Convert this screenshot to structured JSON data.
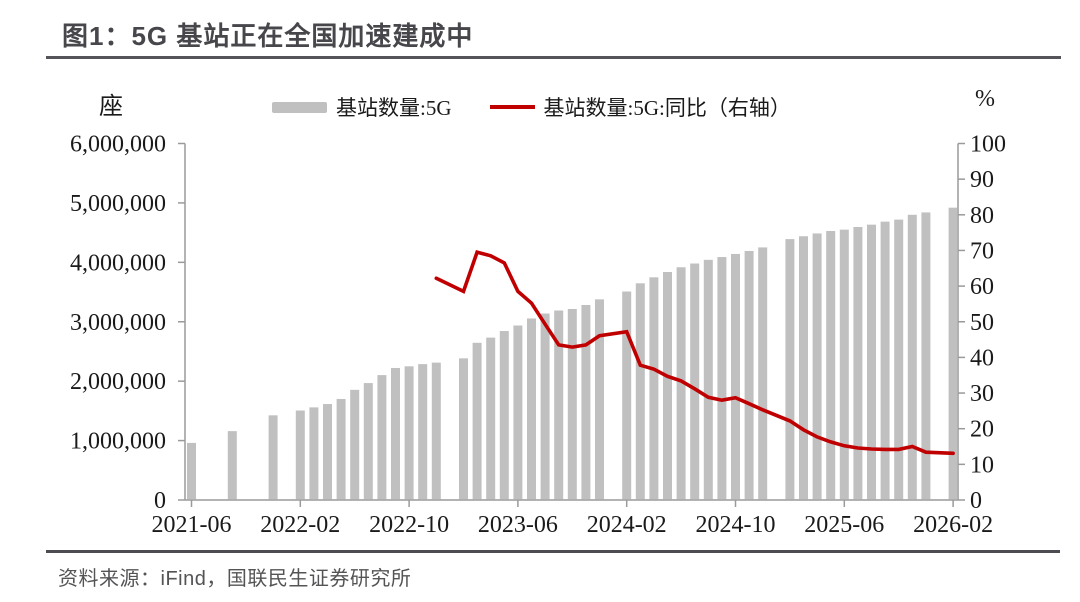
{
  "figure": {
    "title": "图1：5G 基站正在全国加速建成中",
    "source": "资料来源：iFind，国联民生证券研究所"
  },
  "chart_data": {
    "type": "combo-bar-line",
    "title": "图1：5G 基站正在全国加速建成中",
    "grid": "off",
    "legend_position": "top",
    "left_axis": {
      "unit": "座",
      "min": 0,
      "max": 6000000,
      "ticks": [
        {
          "value": 0,
          "label": "0"
        },
        {
          "value": 1000000,
          "label": "1,000,000"
        },
        {
          "value": 2000000,
          "label": "2,000,000"
        },
        {
          "value": 3000000,
          "label": "3,000,000"
        },
        {
          "value": 4000000,
          "label": "4,000,000"
        },
        {
          "value": 5000000,
          "label": "5,000,000"
        },
        {
          "value": 6000000,
          "label": "6,000,000"
        }
      ]
    },
    "right_axis": {
      "unit": "%",
      "min": 0,
      "max": 100,
      "ticks": [
        {
          "value": 0,
          "label": "0"
        },
        {
          "value": 10,
          "label": "10"
        },
        {
          "value": 20,
          "label": "20"
        },
        {
          "value": 30,
          "label": "30"
        },
        {
          "value": 40,
          "label": "40"
        },
        {
          "value": 50,
          "label": "50"
        },
        {
          "value": 60,
          "label": "60"
        },
        {
          "value": 70,
          "label": "70"
        },
        {
          "value": 80,
          "label": "80"
        },
        {
          "value": 90,
          "label": "90"
        },
        {
          "value": 100,
          "label": "100"
        }
      ]
    },
    "x_tick_labels": [
      "2021-06",
      "2022-02",
      "2022-10",
      "2023-06",
      "2024-02",
      "2024-10",
      "2025-06",
      "2026-02"
    ],
    "series": [
      {
        "name": "基站数量:5G",
        "type": "bar",
        "axis": "left",
        "color": "#c0c0c0",
        "points": [
          [
            "2021-06",
            961000
          ],
          [
            "2021-09",
            1159000
          ],
          [
            "2021-12",
            1425000
          ],
          [
            "2022-02",
            1506000
          ],
          [
            "2022-03",
            1559000
          ],
          [
            "2022-04",
            1615000
          ],
          [
            "2022-05",
            1700000
          ],
          [
            "2022-06",
            1854000
          ],
          [
            "2022-07",
            1968000
          ],
          [
            "2022-08",
            2102000
          ],
          [
            "2022-09",
            2222000
          ],
          [
            "2022-10",
            2250000
          ],
          [
            "2022-11",
            2287000
          ],
          [
            "2022-12",
            2312000
          ],
          [
            "2023-02",
            2384000
          ],
          [
            "2023-03",
            2646000
          ],
          [
            "2023-04",
            2733000
          ],
          [
            "2023-05",
            2844000
          ],
          [
            "2023-06",
            2937000
          ],
          [
            "2023-07",
            3055000
          ],
          [
            "2023-08",
            3138000
          ],
          [
            "2023-09",
            3189000
          ],
          [
            "2023-10",
            3215000
          ],
          [
            "2023-11",
            3282000
          ],
          [
            "2023-12",
            3377000
          ],
          [
            "2024-02",
            3509000
          ],
          [
            "2024-03",
            3647000
          ],
          [
            "2024-04",
            3748000
          ],
          [
            "2024-05",
            3837000
          ],
          [
            "2024-06",
            3917000
          ],
          [
            "2024-07",
            3980000
          ],
          [
            "2024-08",
            4042000
          ],
          [
            "2024-09",
            4089000
          ],
          [
            "2024-10",
            4141000
          ],
          [
            "2024-11",
            4191000
          ],
          [
            "2024-12",
            4251000
          ],
          [
            "2025-02",
            4391000
          ],
          [
            "2025-03",
            4439000
          ],
          [
            "2025-04",
            4486000
          ],
          [
            "2025-05",
            4527000
          ],
          [
            "2025-06",
            4550000
          ],
          [
            "2025-07",
            4595000
          ],
          [
            "2025-08",
            4634000
          ],
          [
            "2025-09",
            4685000
          ],
          [
            "2025-10",
            4719000
          ],
          [
            "2025-11",
            4800000
          ],
          [
            "2025-12",
            4840000
          ],
          [
            "2026-02",
            4920000
          ]
        ]
      },
      {
        "name": "基站数量:5G:同比（右轴）",
        "type": "line",
        "axis": "right",
        "color": "#c00000",
        "points": [
          [
            "2022-12",
            62.2
          ],
          [
            "2023-02",
            58.5
          ],
          [
            "2023-03",
            69.5
          ],
          [
            "2023-04",
            68.5
          ],
          [
            "2023-05",
            66.5
          ],
          [
            "2023-06",
            58.5
          ],
          [
            "2023-07",
            55.2
          ],
          [
            "2023-08",
            49.3
          ],
          [
            "2023-09",
            43.5
          ],
          [
            "2023-10",
            42.9
          ],
          [
            "2023-11",
            43.5
          ],
          [
            "2023-12",
            46.1
          ],
          [
            "2024-02",
            47.2
          ],
          [
            "2024-03",
            37.8
          ],
          [
            "2024-04",
            36.7
          ],
          [
            "2024-05",
            34.7
          ],
          [
            "2024-06",
            33.4
          ],
          [
            "2024-07",
            31.2
          ],
          [
            "2024-08",
            28.8
          ],
          [
            "2024-09",
            28.0
          ],
          [
            "2024-10",
            28.7
          ],
          [
            "2024-11",
            27.0
          ],
          [
            "2024-12",
            25.3
          ],
          [
            "2025-02",
            22.2
          ],
          [
            "2025-03",
            19.7
          ],
          [
            "2025-04",
            17.7
          ],
          [
            "2025-05",
            16.3
          ],
          [
            "2025-06",
            15.2
          ],
          [
            "2025-07",
            14.6
          ],
          [
            "2025-08",
            14.3
          ],
          [
            "2025-09",
            14.2
          ],
          [
            "2025-10",
            14.2
          ],
          [
            "2025-11",
            15.0
          ],
          [
            "2025-12",
            13.4
          ],
          [
            "2026-02",
            13.1
          ]
        ]
      }
    ]
  }
}
